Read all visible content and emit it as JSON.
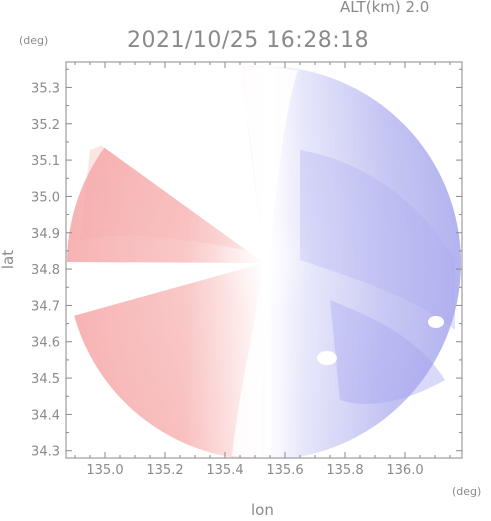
{
  "header": {
    "altitude_label": "ALT(km) 2.0",
    "timestamp": "2021/10/25 16:28:18"
  },
  "axes": {
    "y_unit": "(deg)",
    "x_unit": "(deg)",
    "y_title": "lat",
    "x_title": "lon"
  },
  "chart_data": {
    "type": "heatmap",
    "xlabel": "lon",
    "ylabel": "lat",
    "x_unit": "deg",
    "y_unit": "deg",
    "xlim": [
      134.87,
      136.19
    ],
    "ylim": [
      34.28,
      35.37
    ],
    "x_ticks": [
      "135.0",
      "135.2",
      "135.4",
      "135.6",
      "135.8",
      "136.0"
    ],
    "y_ticks": [
      "34.3",
      "34.4",
      "34.5",
      "34.6",
      "34.7",
      "34.8",
      "34.9",
      "35.0",
      "35.1",
      "35.2",
      "35.3"
    ],
    "radar_center": {
      "lon": 135.52,
      "lat": 34.82
    },
    "coverage_radius_deg_lat": 0.53,
    "colormap": {
      "approaching_side": "#9f9ff4",
      "receding_side": "#f8b4b4",
      "zero": "#ffffff"
    },
    "grid": false
  }
}
